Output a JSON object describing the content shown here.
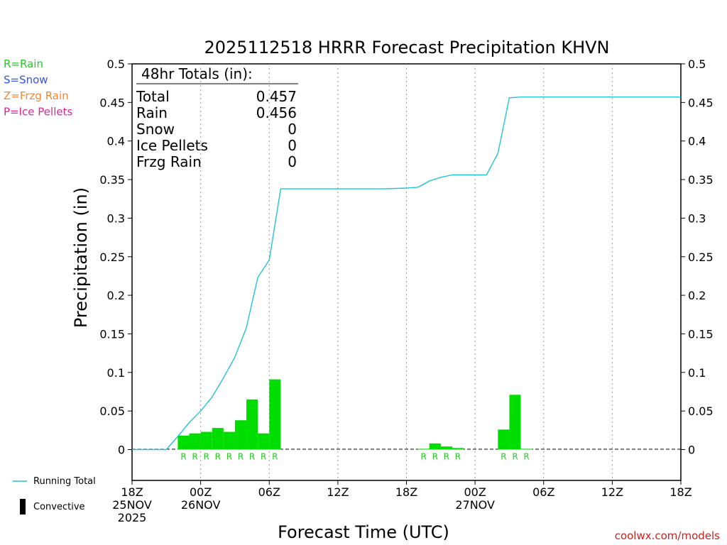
{
  "page": {
    "legend_left": [
      {
        "label": "R=Rain",
        "color": "#22cc22"
      },
      {
        "label": "S=Snow",
        "color": "#3355ee"
      },
      {
        "label": "Z=Frzg Rain",
        "color": "#ee8833"
      },
      {
        "label": "P=Ice Pellets",
        "color": "#dd2299"
      }
    ],
    "legend_bottom": [
      {
        "label": "Running Total",
        "kind": "line",
        "color": "#22c4d4"
      },
      {
        "label": "Convective",
        "kind": "bar",
        "color": "#000000"
      }
    ],
    "watermark": "coolwx.com/models",
    "watermark_color": "#cc2222"
  },
  "chart_data": {
    "type": "bar",
    "title": "2025112518 HRRR Forecast Precipitation KHVN",
    "xlabel": "Forecast Time (UTC)",
    "ylabel": "Precipitation (in)",
    "ylim": [
      -0.04,
      0.5
    ],
    "y_ticks": [
      0,
      0.05,
      0.1,
      0.15,
      0.2,
      0.25,
      0.3,
      0.35,
      0.4,
      0.45,
      0.5
    ],
    "y_tick_labels": [
      "0",
      "0.05",
      "0.1",
      "0.15",
      "0.2",
      "0.25",
      "0.3",
      "0.35",
      "0.4",
      "0.45",
      "0.5"
    ],
    "xlim_hours": [
      0,
      48
    ],
    "x_ticks": [
      {
        "hour": 0,
        "lines": [
          "18Z",
          "25NOV",
          "2025"
        ]
      },
      {
        "hour": 6,
        "lines": [
          "00Z",
          "26NOV"
        ]
      },
      {
        "hour": 12,
        "lines": [
          "06Z"
        ]
      },
      {
        "hour": 18,
        "lines": [
          "12Z"
        ]
      },
      {
        "hour": 24,
        "lines": [
          "18Z"
        ]
      },
      {
        "hour": 30,
        "lines": [
          "00Z",
          "27NOV"
        ]
      },
      {
        "hour": 36,
        "lines": [
          "06Z"
        ]
      },
      {
        "hour": 42,
        "lines": [
          "12Z"
        ]
      },
      {
        "hour": 48,
        "lines": [
          "18Z"
        ]
      }
    ],
    "grid": "vertical dotted at tick hours",
    "bar_color": "#00dd00",
    "line_color": "#22c4d4",
    "hourly_precip": [
      {
        "hour": 5,
        "value": 0.018,
        "type": "R"
      },
      {
        "hour": 6,
        "value": 0.021,
        "type": "R"
      },
      {
        "hour": 7,
        "value": 0.023,
        "type": "R"
      },
      {
        "hour": 8,
        "value": 0.028,
        "type": "R"
      },
      {
        "hour": 9,
        "value": 0.023,
        "type": "R"
      },
      {
        "hour": 10,
        "value": 0.038,
        "type": "R"
      },
      {
        "hour": 11,
        "value": 0.065,
        "type": "R"
      },
      {
        "hour": 12,
        "value": 0.021,
        "type": "R"
      },
      {
        "hour": 13,
        "value": 0.091,
        "type": "R"
      },
      {
        "hour": 26,
        "value": 0.001,
        "type": "R"
      },
      {
        "hour": 27,
        "value": 0.008,
        "type": "R"
      },
      {
        "hour": 28,
        "value": 0.004,
        "type": "R"
      },
      {
        "hour": 29,
        "value": 0.002,
        "type": "R"
      },
      {
        "hour": 33,
        "value": 0.026,
        "type": "R"
      },
      {
        "hour": 34,
        "value": 0.071,
        "type": "R"
      },
      {
        "hour": 35,
        "value": 0.001,
        "type": "R"
      }
    ],
    "running_total": {
      "hours": [
        0,
        3,
        4,
        5,
        6,
        7,
        8,
        9,
        10,
        11,
        12,
        13,
        22,
        24,
        25,
        26,
        27,
        28,
        29,
        30,
        31,
        32,
        33,
        34,
        35,
        48
      ],
      "values": [
        0,
        0,
        0.017,
        0.035,
        0.05,
        0.068,
        0.093,
        0.12,
        0.158,
        0.223,
        0.246,
        0.338,
        0.338,
        0.339,
        0.34,
        0.348,
        0.353,
        0.356,
        0.356,
        0.356,
        0.356,
        0.384,
        0.456,
        0.457,
        0.457,
        0.457
      ]
    },
    "totals": {
      "heading": "48hr Totals (in):",
      "rows": [
        {
          "label": "Total",
          "value": "0.457"
        },
        {
          "label": "Rain",
          "value": "0.456"
        },
        {
          "label": "Snow",
          "value": "0"
        },
        {
          "label": "Ice Pellets",
          "value": "0"
        },
        {
          "label": "Frzg Rain",
          "value": "0"
        }
      ]
    }
  }
}
